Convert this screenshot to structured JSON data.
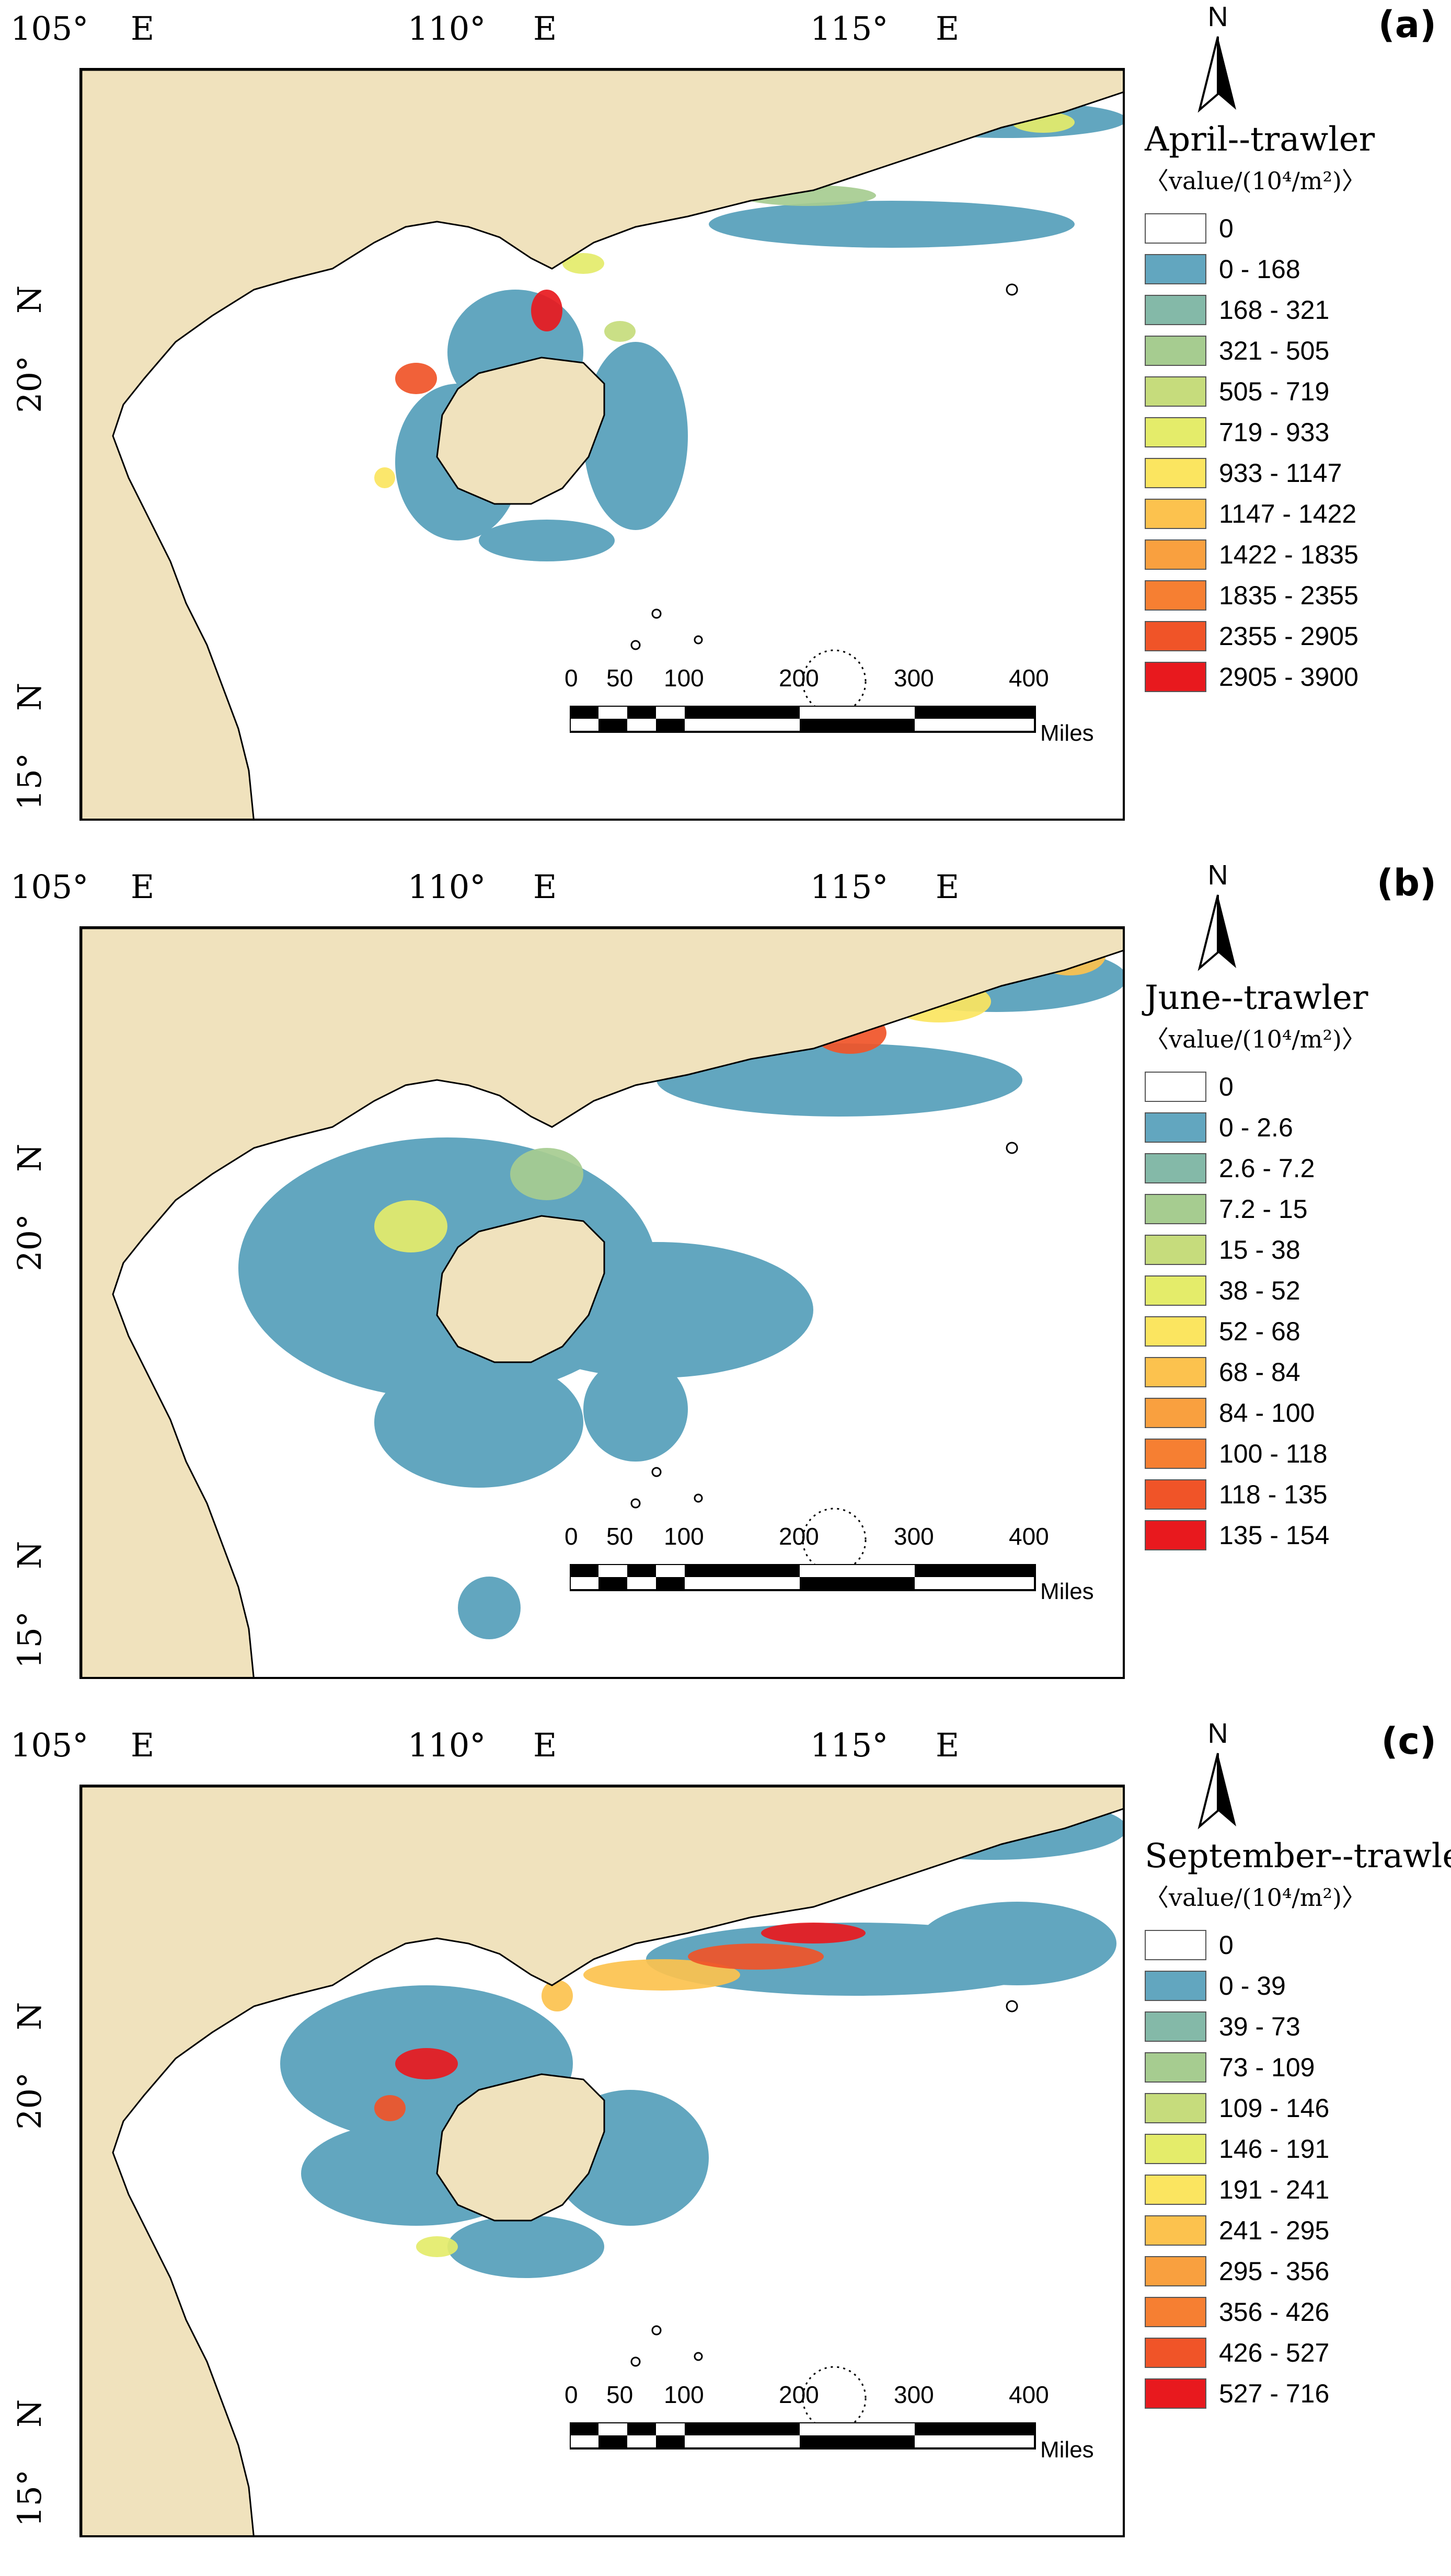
{
  "axes": {
    "top_ticks": [
      "105°",
      "E",
      "110°",
      "E",
      "115°",
      "E"
    ],
    "left_ticks": [
      "15°",
      "N",
      "20°",
      "N"
    ]
  },
  "panels": [
    {
      "label": "(a)",
      "title": "April--trawler",
      "unit": "〈value/(10⁴/m²)〉",
      "legend": [
        "0",
        "0 - 168",
        "168 - 321",
        "321 - 505",
        "505 - 719",
        "719 - 933",
        "933 - 1147",
        "1147 - 1422",
        "1422 - 1835",
        "1835 - 2355",
        "2355 - 2905",
        "2905 - 3900"
      ]
    },
    {
      "label": "(b)",
      "title": "June--trawler",
      "unit": "〈value/(10⁴/m²)〉",
      "legend": [
        "0",
        "0 - 2.6",
        "2.6 - 7.2",
        "7.2 - 15",
        "15 - 38",
        "38 - 52",
        "52 - 68",
        "68 - 84",
        "84 - 100",
        "100 - 118",
        "118 - 135",
        "135 - 154"
      ]
    },
    {
      "label": "(c)",
      "title": "September--trawler",
      "unit": "〈value/(10⁴/m²)〉",
      "legend": [
        "0",
        "0 - 39",
        "39 - 73",
        "73 - 109",
        "109 - 146",
        "146 - 191",
        "191 - 241",
        "241 - 295",
        "295 - 356",
        "356 - 426",
        "426 - 527",
        "527 - 716"
      ]
    }
  ],
  "legend_colors": [
    "#ffffff",
    "#62a6bf",
    "#84b9a8",
    "#a6cc90",
    "#c6dc7c",
    "#e4ec6a",
    "#fbe560",
    "#fcc24e",
    "#f9a03f",
    "#f67f32",
    "#f05428",
    "#e8191e"
  ],
  "land_color": "#f0e2bd",
  "scale": {
    "ticks": [
      "0",
      "50",
      "100",
      "200",
      "300",
      "400"
    ],
    "unit": "Miles"
  },
  "north_label": "N"
}
